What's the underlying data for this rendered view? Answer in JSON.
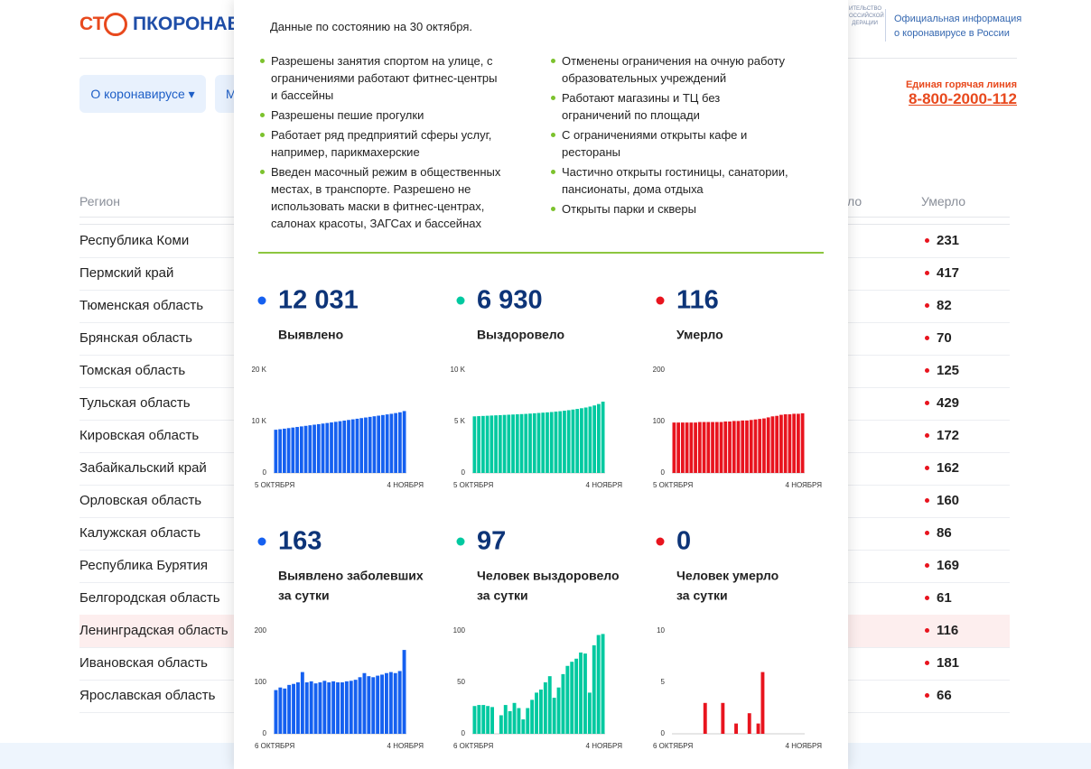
{
  "header": {
    "logo_left": "СТ",
    "logo_right": "ПКОРОНАВИ",
    "emblem": [
      "ИТЕЛЬСТВО",
      "ОССИЙСКОЙ",
      "ДЕРАЦИИ"
    ],
    "gov_info": [
      "Официальная информация",
      "о коронавирусе в России"
    ],
    "hotline_label": "Единая горячая линия",
    "hotline_phone": "8-800-2000-112"
  },
  "nav": [
    "О коронавирусе ▾",
    "М"
  ],
  "table": {
    "headers": [
      "Регион",
      "ло",
      "Умерло"
    ],
    "rows": [
      [
        "Республика Коми",
        231
      ],
      [
        "Пермский край",
        417
      ],
      [
        "Тюменская область",
        82
      ],
      [
        "Брянская область",
        70
      ],
      [
        "Томская область",
        125
      ],
      [
        "Тульская область",
        429
      ],
      [
        "Кировская область",
        172
      ],
      [
        "Забайкальский край",
        162
      ],
      [
        "Орловская область",
        160
      ],
      [
        "Калужская область",
        86
      ],
      [
        "Республика Бурятия",
        169
      ],
      [
        "Белгородская область",
        61
      ],
      [
        "Ленинградская область",
        116
      ],
      [
        "Ивановская область",
        181
      ],
      [
        "Ярославская область",
        66
      ]
    ],
    "highlighted_row": 12
  },
  "modal": {
    "date_note": "Данные по состоянию на 30 октября.",
    "left_list": [
      "Разрешены занятия спортом на улице, с ограничениями работают фитнес-центры и бассейны",
      "Разрешены пешие прогулки",
      "Работает ряд предприятий сферы услуг, например, парикмахерские",
      "Введен масочный режим в общественных местах, в транспорте. Разрешено не использовать маски в фитнес-центрах, салонах красоты, ЗАГСах и бассейнах"
    ],
    "right_list": [
      "Отменены ограничения на очную работу образовательных учреждений",
      "Работают магазины и ТЦ без ограничений по площади",
      "С ограничениями открыты кафе и рестораны",
      "Частично открыты гостиницы, санатории, пансионаты, дома отдыха",
      "Открыты парки и скверы"
    ]
  },
  "chart_data": [
    {
      "type": "bar",
      "title": "Выявлено",
      "headline": {
        "value": 12031,
        "label": "12 031"
      },
      "color": "#1560f0",
      "ylim": [
        0,
        20000
      ],
      "yticks": [
        0,
        {
          "value": 10000,
          "label": "10 K"
        },
        {
          "value": 20000,
          "label": "20 K"
        }
      ],
      "categories": [
        "5 ОКТЯБРЯ",
        null,
        null,
        null,
        null,
        null,
        null,
        null,
        null,
        null,
        null,
        null,
        null,
        null,
        null,
        null,
        null,
        null,
        null,
        null,
        null,
        null,
        null,
        null,
        null,
        null,
        null,
        null,
        null,
        null,
        "4 НОЯБРЯ"
      ],
      "values": [
        8400,
        8500,
        8610,
        8720,
        8830,
        8940,
        9050,
        9160,
        9270,
        9380,
        9490,
        9600,
        9710,
        9820,
        9940,
        10060,
        10180,
        10300,
        10420,
        10540,
        10660,
        10780,
        10900,
        11020,
        11140,
        11260,
        11380,
        11500,
        11640,
        11790,
        12031
      ]
    },
    {
      "type": "bar",
      "title": "Выздоровело",
      "headline": {
        "value": 6930,
        "label": "6 930"
      },
      "color": "#00c9a0",
      "ylim": [
        0,
        10000
      ],
      "yticks": [
        0,
        {
          "value": 5000,
          "label": "5 K"
        },
        {
          "value": 10000,
          "label": "10 K"
        }
      ],
      "categories": [
        "5 ОКТЯБРЯ",
        null,
        null,
        null,
        null,
        null,
        null,
        null,
        null,
        null,
        null,
        null,
        null,
        null,
        null,
        null,
        null,
        null,
        null,
        null,
        null,
        null,
        null,
        null,
        null,
        null,
        null,
        null,
        null,
        null,
        "4 НОЯБРЯ"
      ],
      "values": [
        5500,
        5520,
        5540,
        5560,
        5580,
        5600,
        5620,
        5640,
        5660,
        5680,
        5700,
        5720,
        5740,
        5770,
        5800,
        5830,
        5860,
        5890,
        5920,
        5960,
        6000,
        6050,
        6100,
        6160,
        6220,
        6290,
        6360,
        6450,
        6560,
        6700,
        6930
      ]
    },
    {
      "type": "bar",
      "title": "Умерло",
      "headline": {
        "value": 116,
        "label": "116"
      },
      "color": "#e8141e",
      "ylim": [
        0,
        200
      ],
      "yticks": [
        0,
        100,
        200
      ],
      "categories": [
        "5 ОКТЯБРЯ",
        null,
        null,
        null,
        null,
        null,
        null,
        null,
        null,
        null,
        null,
        null,
        null,
        null,
        null,
        null,
        null,
        null,
        null,
        null,
        null,
        null,
        null,
        null,
        null,
        null,
        null,
        null,
        null,
        null,
        "4 НОЯБРЯ"
      ],
      "values": [
        98,
        98,
        98,
        98,
        98,
        98,
        99,
        99,
        99,
        99,
        99,
        99,
        100,
        100,
        101,
        101,
        102,
        102,
        103,
        104,
        105,
        106,
        108,
        110,
        111,
        113,
        114,
        114,
        115,
        115,
        116
      ]
    },
    {
      "type": "bar",
      "title": "Выявлено заболевших\nза сутки",
      "headline": {
        "value": 163,
        "label": "163"
      },
      "color": "#1560f0",
      "ylim": [
        0,
        200
      ],
      "yticks": [
        0,
        100,
        200
      ],
      "categories": [
        "6 ОКТЯБРЯ",
        null,
        null,
        null,
        null,
        null,
        null,
        null,
        null,
        null,
        null,
        null,
        null,
        null,
        null,
        null,
        null,
        null,
        null,
        null,
        null,
        null,
        null,
        null,
        null,
        null,
        null,
        null,
        null,
        "4 НОЯБРЯ"
      ],
      "values": [
        85,
        90,
        88,
        95,
        97,
        100,
        120,
        100,
        102,
        98,
        100,
        103,
        100,
        102,
        100,
        100,
        102,
        103,
        105,
        110,
        118,
        112,
        110,
        113,
        115,
        118,
        120,
        118,
        122,
        163
      ]
    },
    {
      "type": "bar",
      "title": "Человек выздоровело\nза сутки",
      "headline": {
        "value": 97,
        "label": "97"
      },
      "color": "#00c9a0",
      "ylim": [
        0,
        100
      ],
      "yticks": [
        0,
        50,
        100
      ],
      "categories": [
        "6 ОКТЯБРЯ",
        null,
        null,
        null,
        null,
        null,
        null,
        null,
        null,
        null,
        null,
        null,
        null,
        null,
        null,
        null,
        null,
        null,
        null,
        null,
        null,
        null,
        null,
        null,
        null,
        null,
        null,
        null,
        null,
        "4 НОЯБРЯ"
      ],
      "values": [
        27,
        28,
        28,
        27,
        26,
        0,
        18,
        28,
        22,
        30,
        25,
        14,
        25,
        33,
        40,
        43,
        50,
        56,
        35,
        45,
        58,
        66,
        70,
        73,
        79,
        78,
        40,
        86,
        96,
        97
      ]
    },
    {
      "type": "bar",
      "title": "Человек умерло\nза сутки",
      "headline": {
        "value": 0,
        "label": "0"
      },
      "color": "#e8141e",
      "ylim": [
        0,
        10
      ],
      "yticks": [
        0,
        5,
        10
      ],
      "categories": [
        "6 ОКТЯБРЯ",
        null,
        null,
        null,
        null,
        null,
        null,
        null,
        null,
        null,
        null,
        null,
        null,
        null,
        null,
        null,
        null,
        null,
        null,
        null,
        null,
        null,
        null,
        null,
        null,
        null,
        null,
        null,
        null,
        "4 НОЯБРЯ"
      ],
      "values": [
        0,
        0,
        0,
        0,
        0,
        0,
        0,
        3,
        0,
        0,
        0,
        3,
        0,
        0,
        1,
        0,
        0,
        2,
        0,
        1,
        6,
        0,
        0,
        0,
        0,
        0,
        0,
        0,
        0,
        0
      ]
    }
  ]
}
